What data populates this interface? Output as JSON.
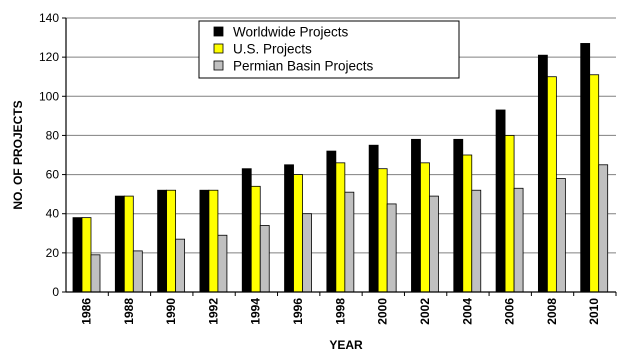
{
  "chart_data": {
    "type": "bar",
    "xlabel": "YEAR",
    "ylabel": "NO. OF PROJECTS",
    "ylim": [
      0,
      140
    ],
    "yticks": [
      0,
      20,
      40,
      60,
      80,
      100,
      120,
      140
    ],
    "grid": true,
    "legend_position": "top-center",
    "categories": [
      "1986",
      "1988",
      "1990",
      "1992",
      "1994",
      "1996",
      "1998",
      "2000",
      "2002",
      "2004",
      "2006",
      "2008",
      "2010"
    ],
    "series": [
      {
        "name": "Worldwide Projects",
        "color": "#000000",
        "values": [
          38,
          49,
          52,
          52,
          63,
          65,
          72,
          75,
          78,
          78,
          93,
          121,
          127
        ]
      },
      {
        "name": "U.S. Projects",
        "color": "#ffff00",
        "values": [
          38,
          49,
          52,
          52,
          54,
          60,
          66,
          63,
          66,
          70,
          80,
          110,
          111
        ]
      },
      {
        "name": "Permian Basin Projects",
        "color": "#c0c0c0",
        "values": [
          19,
          21,
          27,
          29,
          34,
          40,
          51,
          45,
          49,
          52,
          53,
          58,
          65
        ]
      }
    ]
  }
}
